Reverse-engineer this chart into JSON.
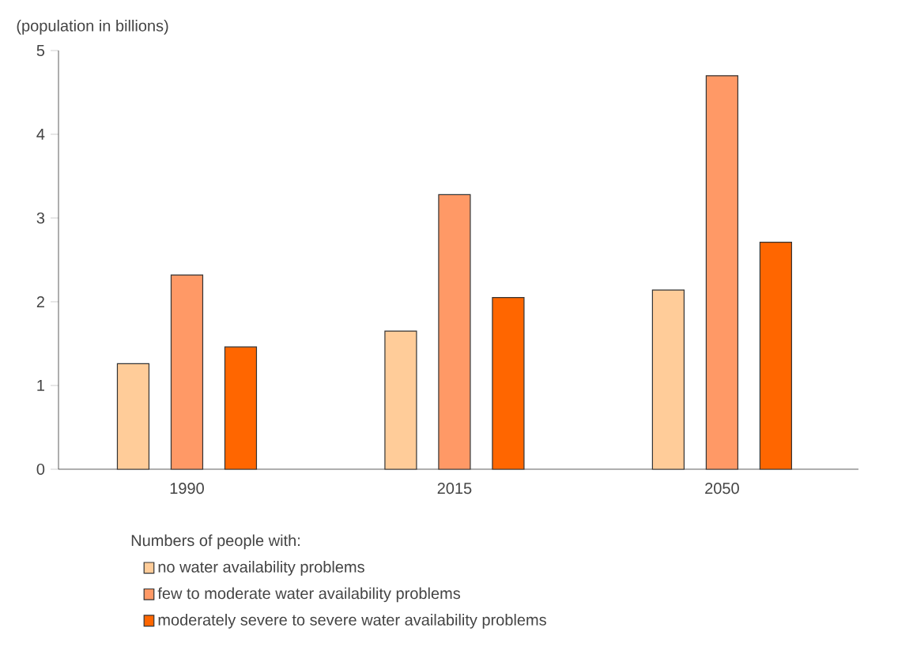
{
  "chart_data": {
    "type": "bar",
    "ylabel": "(population in billions)",
    "legend_title": "Numbers of people with:",
    "legend": "bottom",
    "categories": [
      "1990",
      "2015",
      "2050"
    ],
    "series": [
      {
        "name": "no water availability problems",
        "color": "#ffcc99",
        "values": [
          1.26,
          1.65,
          2.14
        ]
      },
      {
        "name": "few to moderate water availability problems",
        "color": "#ff9966",
        "values": [
          2.32,
          3.28,
          4.7
        ]
      },
      {
        "name": "moderately severe to severe water availability problems",
        "color": "#ff6600",
        "values": [
          1.46,
          2.05,
          2.71
        ]
      }
    ],
    "ylim": [
      0,
      5
    ],
    "yticks": [
      0,
      1,
      2,
      3,
      4,
      5
    ]
  }
}
